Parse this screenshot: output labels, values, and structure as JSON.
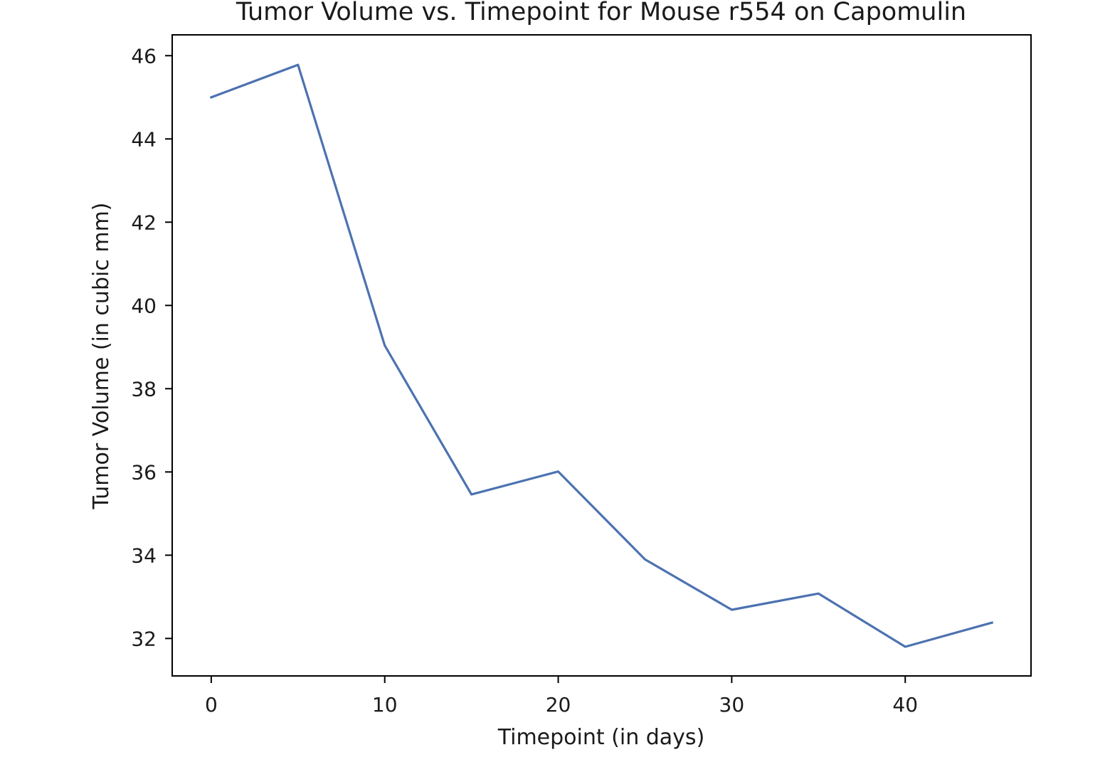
{
  "chart_data": {
    "type": "line",
    "title": "Tumor Volume vs. Timepoint for Mouse r554 on Capomulin",
    "xlabel": "Timepoint (in days)",
    "ylabel": "Tumor Volume (in cubic mm)",
    "x": [
      0,
      5,
      10,
      15,
      20,
      25,
      30,
      35,
      40,
      45
    ],
    "series": [
      {
        "values": [
          45.0,
          45.78,
          39.04,
          35.46,
          36.01,
          33.9,
          32.69,
          33.08,
          31.8,
          32.38
        ],
        "color": "#4c72b0"
      }
    ],
    "xlim": [
      -2.25,
      47.25
    ],
    "ylim": [
      31.1,
      46.5
    ],
    "xticks": [
      0,
      10,
      20,
      30,
      40
    ],
    "yticks": [
      32,
      34,
      36,
      38,
      40,
      42,
      44,
      46
    ],
    "grid": false,
    "legend": false
  }
}
